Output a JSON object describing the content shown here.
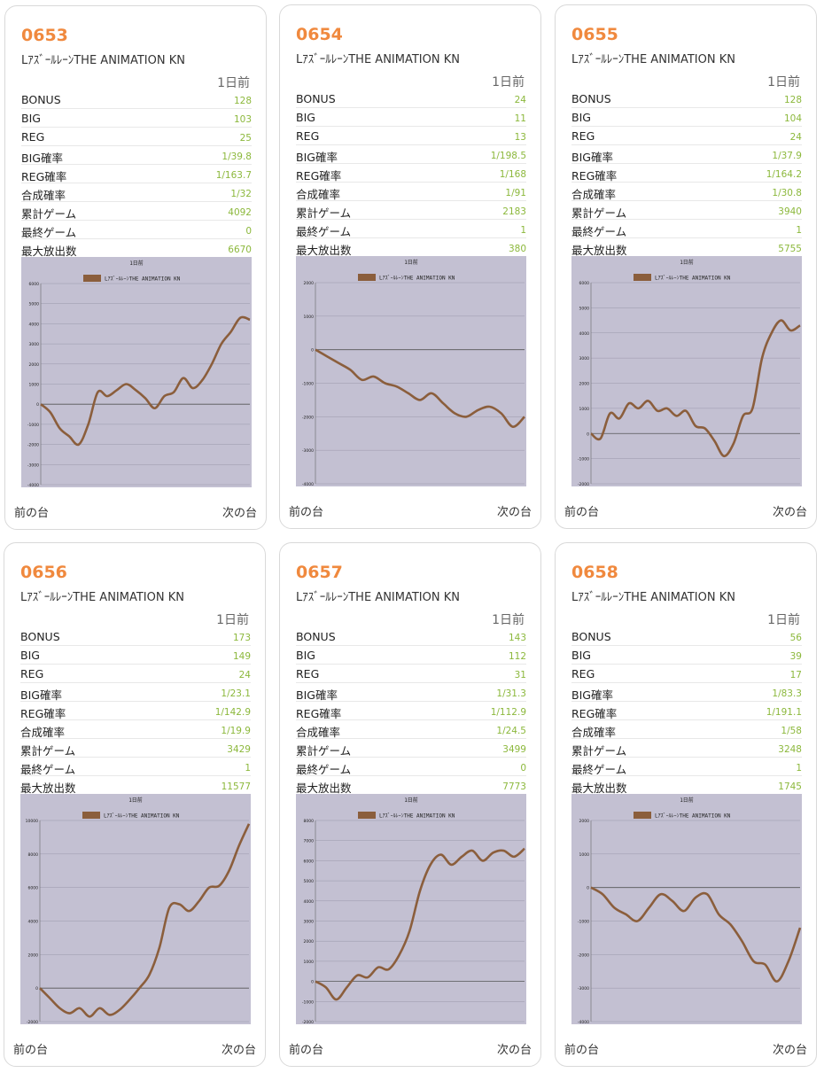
{
  "labels": {
    "day": "1日前",
    "prev": "前の台",
    "next": "次の台",
    "rows": [
      "BONUS",
      "BIG",
      "REG",
      "BIG確率",
      "REG確率",
      "合成確率",
      "累計ゲーム",
      "最終ゲーム",
      "最大放出数"
    ]
  },
  "colors": {
    "number": "#f0893e",
    "value": "#8cb83c",
    "chart_bg": "#c3c0d2",
    "line": "#8b5e3c"
  },
  "machines": [
    {
      "number": "0653",
      "name": "LｱｽﾞｰﾙﾚｰﾝTHE ANIMATION KN",
      "stats": [
        "128",
        "103",
        "25",
        "1/39.8",
        "1/163.7",
        "1/32",
        "4092",
        "0",
        "6670"
      ]
    },
    {
      "number": "0654",
      "name": "LｱｽﾞｰﾙﾚｰﾝTHE ANIMATION KN",
      "stats": [
        "24",
        "11",
        "13",
        "1/198.5",
        "1/168",
        "1/91",
        "2183",
        "1",
        "380"
      ]
    },
    {
      "number": "0655",
      "name": "LｱｽﾞｰﾙﾚｰﾝTHE ANIMATION KN",
      "stats": [
        "128",
        "104",
        "24",
        "1/37.9",
        "1/164.2",
        "1/30.8",
        "3940",
        "1",
        "5755"
      ]
    },
    {
      "number": "0656",
      "name": "LｱｽﾞｰﾙﾚｰﾝTHE ANIMATION KN",
      "stats": [
        "173",
        "149",
        "24",
        "1/23.1",
        "1/142.9",
        "1/19.9",
        "3429",
        "1",
        "11577"
      ]
    },
    {
      "number": "0657",
      "name": "LｱｽﾞｰﾙﾚｰﾝTHE ANIMATION KN",
      "stats": [
        "143",
        "112",
        "31",
        "1/31.3",
        "1/112.9",
        "1/24.5",
        "3499",
        "0",
        "7773"
      ]
    },
    {
      "number": "0658",
      "name": "LｱｽﾞｰﾙﾚｰﾝTHE ANIMATION KN",
      "stats": [
        "56",
        "39",
        "17",
        "1/83.3",
        "1/191.1",
        "1/58",
        "3248",
        "1",
        "1745"
      ]
    }
  ],
  "chart_data": [
    {
      "type": "line",
      "title": "1日前",
      "series": [
        {
          "name": "LｱｽﾞｰﾙﾚｰﾝTHE ANIMATION KN",
          "values": [
            0,
            -400,
            -1200,
            -1600,
            -2000,
            -1000,
            600,
            400,
            700,
            1000,
            700,
            300,
            -200,
            400,
            600,
            1300,
            800,
            1200,
            2000,
            3000,
            3600,
            4300,
            4200
          ]
        }
      ],
      "ylim": [
        -4000,
        6000
      ],
      "yticks": [
        -4000,
        -3000,
        -2000,
        -1000,
        0,
        1000,
        2000,
        3000,
        4000,
        5000,
        6000
      ]
    },
    {
      "type": "line",
      "title": "1日前",
      "series": [
        {
          "name": "LｱｽﾞｰﾙﾚｰﾝTHE ANIMATION KN",
          "values": [
            0,
            -200,
            -400,
            -600,
            -900,
            -800,
            -1000,
            -1100,
            -1300,
            -1500,
            -1300,
            -1600,
            -1900,
            -2000,
            -1800,
            -1700,
            -1900,
            -2300,
            -2000
          ]
        }
      ],
      "ylim": [
        -4000,
        2000
      ],
      "yticks": [
        -4000,
        -3000,
        -2000,
        -1000,
        0,
        1000,
        2000
      ]
    },
    {
      "type": "line",
      "title": "1日前",
      "series": [
        {
          "name": "LｱｽﾞｰﾙﾚｰﾝTHE ANIMATION KN",
          "values": [
            0,
            -200,
            800,
            600,
            1200,
            1000,
            1300,
            900,
            1000,
            700,
            900,
            300,
            200,
            -300,
            -900,
            -400,
            700,
            1000,
            3000,
            4000,
            4500,
            4100,
            4300
          ]
        }
      ],
      "ylim": [
        -2000,
        6000
      ],
      "yticks": [
        -2000,
        -1000,
        0,
        1000,
        2000,
        3000,
        4000,
        5000,
        6000
      ]
    },
    {
      "type": "line",
      "title": "1日前",
      "series": [
        {
          "name": "LｱｽﾞｰﾙﾚｰﾝTHE ANIMATION KN",
          "values": [
            0,
            -600,
            -1200,
            -1500,
            -1200,
            -1700,
            -1200,
            -1600,
            -1300,
            -700,
            0,
            800,
            2400,
            4800,
            5000,
            4600,
            5200,
            6000,
            6100,
            7000,
            8500,
            9800
          ]
        }
      ],
      "ylim": [
        -2000,
        10000
      ],
      "yticks": [
        -2000,
        0,
        2000,
        4000,
        6000,
        8000,
        10000
      ]
    },
    {
      "type": "line",
      "title": "1日前",
      "series": [
        {
          "name": "LｱｽﾞｰﾙﾚｰﾝTHE ANIMATION KN",
          "values": [
            0,
            -300,
            -900,
            -300,
            300,
            200,
            700,
            600,
            1300,
            2500,
            4500,
            5800,
            6300,
            5800,
            6200,
            6500,
            6000,
            6400,
            6500,
            6200,
            6600
          ]
        }
      ],
      "ylim": [
        -2000,
        8000
      ],
      "yticks": [
        -2000,
        -1000,
        0,
        1000,
        2000,
        3000,
        4000,
        5000,
        6000,
        7000,
        8000
      ]
    },
    {
      "type": "line",
      "title": "1日前",
      "series": [
        {
          "name": "LｱｽﾞｰﾙﾚｰﾝTHE ANIMATION KN",
          "values": [
            0,
            -200,
            -600,
            -800,
            -1000,
            -600,
            -200,
            -400,
            -700,
            -300,
            -200,
            -800,
            -1100,
            -1600,
            -2200,
            -2300,
            -2800,
            -2200,
            -1200
          ]
        }
      ],
      "ylim": [
        -4000,
        2000
      ],
      "yticks": [
        -4000,
        -3000,
        -2000,
        -1000,
        0,
        1000,
        2000
      ]
    }
  ]
}
